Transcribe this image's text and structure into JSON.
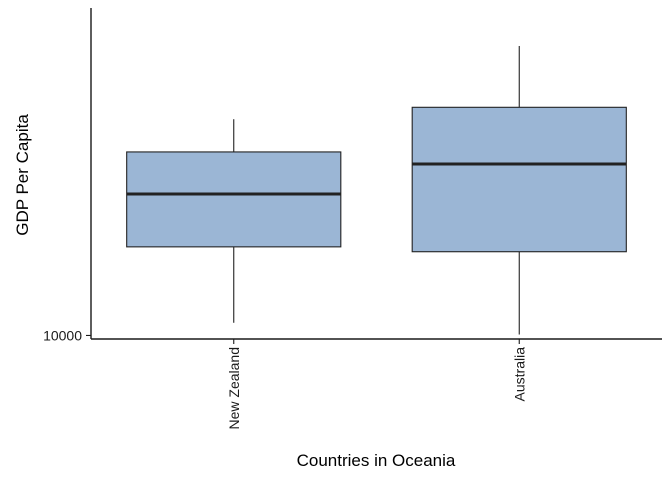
{
  "chart_data": {
    "type": "box",
    "xlabel": "Countries in Oceania",
    "ylabel": "GDP Per Capita",
    "categories": [
      "New Zealand",
      "Australia"
    ],
    "y_scale": "log10",
    "ylim": [
      9850,
      40500
    ],
    "y_ticks": [
      10000
    ],
    "y_tick_labels": [
      "10000"
    ],
    "fill_color": "#9bb6d5",
    "stroke_color": "#222222",
    "boxes": [
      {
        "name": "New Zealand",
        "min": 10557,
        "q1": 14600,
        "median": 18300,
        "q3": 21900,
        "max": 25185
      },
      {
        "name": "Australia",
        "min": 10040,
        "q1": 14300,
        "median": 20800,
        "q3": 26500,
        "max": 34435
      }
    ],
    "grid": false,
    "legend": "none"
  }
}
